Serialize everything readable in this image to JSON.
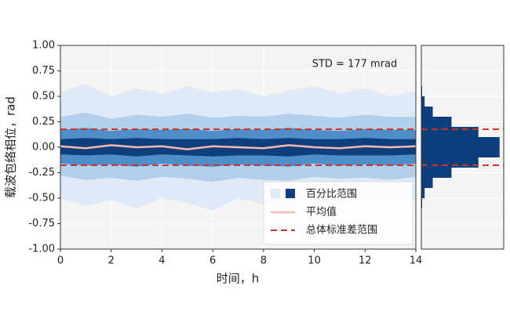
{
  "chart_data": [
    {
      "type": "band",
      "annotation": "STD = 177 mrad",
      "xlabel": "时间，h",
      "ylabel": "载波包络相位，rad",
      "xlim": [
        0,
        14
      ],
      "ylim": [
        -1,
        1
      ],
      "xticks": [
        0,
        2,
        4,
        6,
        8,
        10,
        12,
        14
      ],
      "yticks": [
        {
          "value": 1,
          "label": "1.00"
        },
        {
          "value": 0.75,
          "label": "0.75"
        },
        {
          "value": 0.5,
          "label": "0.50"
        },
        {
          "value": 0.25,
          "label": "0.25"
        },
        {
          "value": 0,
          "label": "0.00"
        },
        {
          "value": -0.25,
          "label": "-0.25"
        },
        {
          "value": -0.5,
          "label": "-0.50"
        },
        {
          "value": -0.75,
          "label": "-0.75"
        },
        {
          "value": -1,
          "label": "-1.00"
        }
      ],
      "grid": true,
      "x": [
        0,
        1,
        2,
        3,
        4,
        5,
        6,
        7,
        8,
        9,
        10,
        11,
        12,
        13,
        14
      ],
      "band_name": "百分比范围",
      "bands": [
        {
          "color": "#deeaf8",
          "upper": [
            0.55,
            0.62,
            0.5,
            0.58,
            0.52,
            0.6,
            0.54,
            0.57,
            0.5,
            0.56,
            0.6,
            0.53,
            0.58,
            0.5,
            0.55
          ],
          "lower": [
            -0.5,
            -0.58,
            -0.52,
            -0.6,
            -0.5,
            -0.55,
            -0.62,
            -0.5,
            -0.56,
            -0.6,
            -0.52,
            -0.57,
            -0.5,
            -0.55,
            -0.52
          ]
        },
        {
          "color": "#b3cfec",
          "upper": [
            0.3,
            0.34,
            0.28,
            0.32,
            0.3,
            0.33,
            0.29,
            0.31,
            0.3,
            0.33,
            0.31,
            0.29,
            0.32,
            0.3,
            0.3
          ],
          "lower": [
            -0.28,
            -0.32,
            -0.3,
            -0.33,
            -0.29,
            -0.31,
            -0.34,
            -0.3,
            -0.32,
            -0.33,
            -0.29,
            -0.31,
            -0.3,
            -0.32,
            -0.29
          ]
        },
        {
          "color": "#4f8cca",
          "upper": [
            0.17,
            0.19,
            0.16,
            0.18,
            0.17,
            0.18,
            0.16,
            0.18,
            0.17,
            0.19,
            0.17,
            0.16,
            0.18,
            0.17,
            0.17
          ],
          "lower": [
            -0.16,
            -0.18,
            -0.17,
            -0.19,
            -0.16,
            -0.18,
            -0.19,
            -0.17,
            -0.18,
            -0.19,
            -0.16,
            -0.18,
            -0.17,
            -0.18,
            -0.16
          ]
        },
        {
          "color": "#0d3f7f",
          "upper": [
            0.08,
            0.09,
            0.08,
            0.09,
            0.08,
            0.08,
            0.08,
            0.09,
            0.08,
            0.09,
            0.08,
            0.08,
            0.09,
            0.08,
            0.08
          ],
          "lower": [
            -0.07,
            -0.08,
            -0.07,
            -0.09,
            -0.07,
            -0.08,
            -0.09,
            -0.08,
            -0.08,
            -0.09,
            -0.07,
            -0.08,
            -0.08,
            -0.08,
            -0.07
          ]
        }
      ],
      "series": [
        {
          "name": "平均值",
          "color": "#f4b8b8",
          "values": [
            0.01,
            -0.01,
            0.02,
            0,
            0.01,
            -0.02,
            0.01,
            0,
            -0.01,
            0.02,
            0,
            -0.01,
            0.01,
            0,
            0.01
          ]
        }
      ],
      "std_lines": {
        "name": "总体标准差范围",
        "color": "#c0392b",
        "values": [
          0.177,
          -0.177
        ]
      }
    },
    {
      "type": "histogram",
      "color": "#0d3f7f",
      "bins": [
        -1,
        -0.9,
        -0.8,
        -0.7,
        -0.6,
        -0.5,
        -0.4,
        -0.3,
        -0.2,
        -0.1,
        0,
        0.1,
        0.2,
        0.3,
        0.4,
        0.5,
        0.6,
        0.7,
        0.8,
        0.9,
        1
      ],
      "counts": [
        0,
        0,
        0,
        0,
        1,
        4,
        14,
        37,
        70,
        96,
        96,
        70,
        37,
        14,
        4,
        1,
        0,
        0,
        0,
        0
      ]
    }
  ]
}
